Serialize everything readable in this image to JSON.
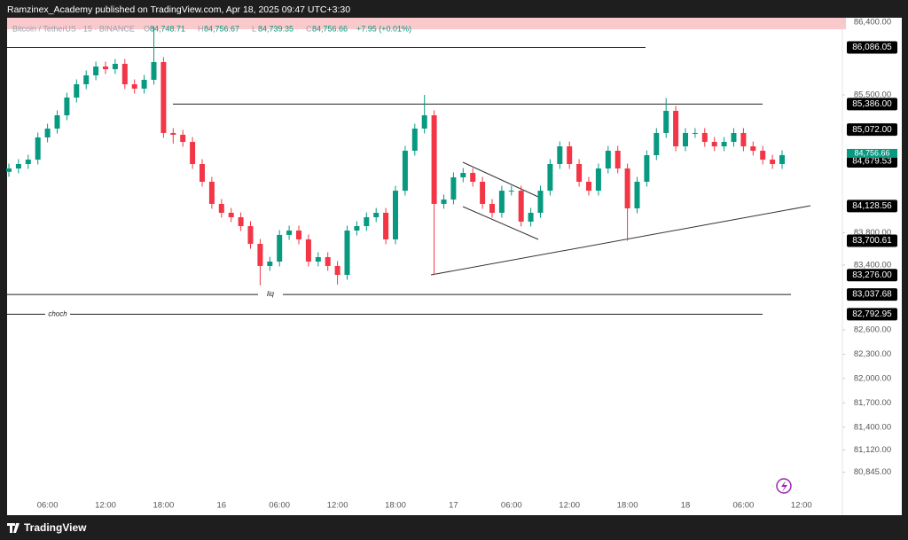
{
  "header": {
    "publisher": "Ramzinex_Academy published on TradingView.com, Apr 18, 2025 09:47 UTC+3:30"
  },
  "footer": {
    "brand": "TradingView"
  },
  "chart_data": {
    "type": "candlestick",
    "symbol": "Bitcoin / TetherUS · 15 · BINANCE",
    "ohlc_legend": [
      {
        "label": "O",
        "value": "84,748.71"
      },
      {
        "label": "H",
        "value": "84,756.67"
      },
      {
        "label": "L",
        "value": "84,739.35"
      },
      {
        "label": "C",
        "value": "84,756.66"
      }
    ],
    "change": "+7.95 (+0.01%)",
    "up_color": "#089981",
    "down_color": "#f23645",
    "open": [
      84550,
      84592,
      84647,
      84701,
      84975,
      85084,
      85248,
      85467,
      85631,
      85741,
      85850,
      85817,
      85883,
      85631,
      85577,
      85686,
      85905,
      85030,
      85008,
      84920,
      84647,
      84428,
      84155,
      84045,
      83990,
      83881,
      83662,
      83389,
      83443,
      83772,
      83826,
      83717,
      83443,
      83498,
      83389,
      83279,
      83826,
      83881,
      83990,
      84045,
      83717,
      84318,
      84811,
      85084,
      85248,
      84155,
      84209,
      84483,
      84537,
      84428,
      84155,
      84045,
      84318,
      84318,
      83936,
      84045,
      84318,
      84647,
      84865,
      84647,
      84428,
      84318,
      84592,
      84811,
      84592,
      84100,
      84428,
      84756,
      85030,
      85303,
      84865,
      85030,
      85030,
      84920,
      84865,
      84920,
      85030,
      84865,
      84811,
      84701,
      84647
    ],
    "high": [
      84652,
      84707,
      84761,
      85035,
      85144,
      85308,
      85527,
      85691,
      85801,
      85910,
      85910,
      85943,
      85943,
      85691,
      85746,
      86342,
      85965,
      85090,
      85068,
      84980,
      84707,
      84488,
      84215,
      84105,
      84050,
      83941,
      83722,
      83503,
      83832,
      83886,
      83886,
      83777,
      83558,
      83558,
      83449,
      83886,
      83941,
      84050,
      84105,
      84105,
      84378,
      84871,
      85144,
      85500,
      85308,
      84269,
      84543,
      84597,
      84597,
      84488,
      84215,
      84378,
      84378,
      84378,
      84105,
      84378,
      84707,
      84925,
      84925,
      84707,
      84488,
      84652,
      84871,
      84871,
      84652,
      84488,
      84816,
      85090,
      85460,
      85363,
      85090,
      85090,
      85090,
      84980,
      84980,
      85090,
      85090,
      84925,
      84871,
      84761,
      84816
    ],
    "low": [
      84490,
      84532,
      84587,
      84641,
      84915,
      85024,
      85188,
      85407,
      85571,
      85681,
      85757,
      85757,
      85571,
      85517,
      85517,
      85626,
      84970,
      84900,
      84860,
      84587,
      84368,
      84095,
      83985,
      83930,
      83821,
      83602,
      83150,
      83329,
      83383,
      83712,
      83657,
      83383,
      83383,
      83329,
      83160,
      83219,
      83766,
      83821,
      83930,
      83657,
      83657,
      84258,
      84751,
      85024,
      83276,
      84095,
      84149,
      84423,
      84368,
      84095,
      83985,
      83985,
      84258,
      83876,
      83876,
      83985,
      84258,
      84587,
      84587,
      84368,
      84258,
      84258,
      84532,
      84532,
      83700,
      84040,
      84368,
      84696,
      84970,
      84805,
      84805,
      84970,
      84860,
      84805,
      84805,
      84860,
      84805,
      84751,
      84641,
      84587,
      84587
    ],
    "close": [
      84592,
      84647,
      84701,
      84975,
      85084,
      85248,
      85467,
      85631,
      85741,
      85850,
      85817,
      85883,
      85631,
      85577,
      85686,
      85905,
      85030,
      85008,
      84920,
      84647,
      84428,
      84155,
      84045,
      83990,
      83881,
      83662,
      83389,
      83443,
      83772,
      83826,
      83717,
      83443,
      83498,
      83389,
      83279,
      83826,
      83881,
      83990,
      84045,
      83717,
      84318,
      84811,
      85084,
      85248,
      84155,
      84209,
      84483,
      84537,
      84428,
      84155,
      84045,
      84318,
      84318,
      83936,
      84045,
      84318,
      84647,
      84865,
      84647,
      84428,
      84318,
      84592,
      84811,
      84592,
      84100,
      84428,
      84756,
      85030,
      85303,
      84865,
      85030,
      85030,
      84920,
      84865,
      84920,
      85030,
      84865,
      84811,
      84701,
      84647,
      84756.66
    ],
    "xlim": [
      -1,
      86
    ],
    "xticks": [
      {
        "value": 4,
        "label": "06:00"
      },
      {
        "value": 10,
        "label": "12:00"
      },
      {
        "value": 16,
        "label": "18:00"
      },
      {
        "value": 22,
        "label": "16"
      },
      {
        "value": 28,
        "label": "06:00"
      },
      {
        "value": 34,
        "label": "12:00"
      },
      {
        "value": 40,
        "label": "18:00"
      },
      {
        "value": 46,
        "label": "17"
      },
      {
        "value": 52,
        "label": "06:00"
      },
      {
        "value": 58,
        "label": "12:00"
      },
      {
        "value": 64,
        "label": "18:00"
      },
      {
        "value": 70,
        "label": "18"
      },
      {
        "value": 76,
        "label": "06:00"
      },
      {
        "value": 82,
        "label": "12:00"
      }
    ],
    "ylim": [
      80325,
      86452
    ],
    "yticks": [
      {
        "value": 86400,
        "label": "86,400.00"
      },
      {
        "value": 85500,
        "label": "85,500.00"
      },
      {
        "value": 83800,
        "label": "83,800.00"
      },
      {
        "value": 83400,
        "label": "83,400.00"
      },
      {
        "value": 82600,
        "label": "82,600.00"
      },
      {
        "value": 82300,
        "label": "82,300.00"
      },
      {
        "value": 82000,
        "label": "82,000.00"
      },
      {
        "value": 81700,
        "label": "81,700.00"
      },
      {
        "value": 81400,
        "label": "81,400.00"
      },
      {
        "value": 81120,
        "label": "81,120.00"
      },
      {
        "value": 80845,
        "label": "80,845.00"
      }
    ],
    "grid": false,
    "levels": [
      {
        "value": 86086.05,
        "label": "86,086.05"
      },
      {
        "value": 85386,
        "label": "85,386.00"
      },
      {
        "value": 85072,
        "label": "85,072.00"
      },
      {
        "value": 84679.53,
        "label": "84,679.53"
      },
      {
        "value": 84128.56,
        "label": "84,128.56"
      },
      {
        "value": 83700.61,
        "label": "83,700.61"
      },
      {
        "value": 83276,
        "label": "83,276.00"
      },
      {
        "value": 83037.68,
        "label": "83,037.68"
      },
      {
        "value": 82792.95,
        "label": "82,792.95"
      }
    ],
    "last_price": {
      "value": 84756.66,
      "label": "84,756.66"
    },
    "annotations": [
      {
        "text": "liq",
        "value": 83037.68
      },
      {
        "text": "choch",
        "value": 82792.95
      }
    ]
  }
}
